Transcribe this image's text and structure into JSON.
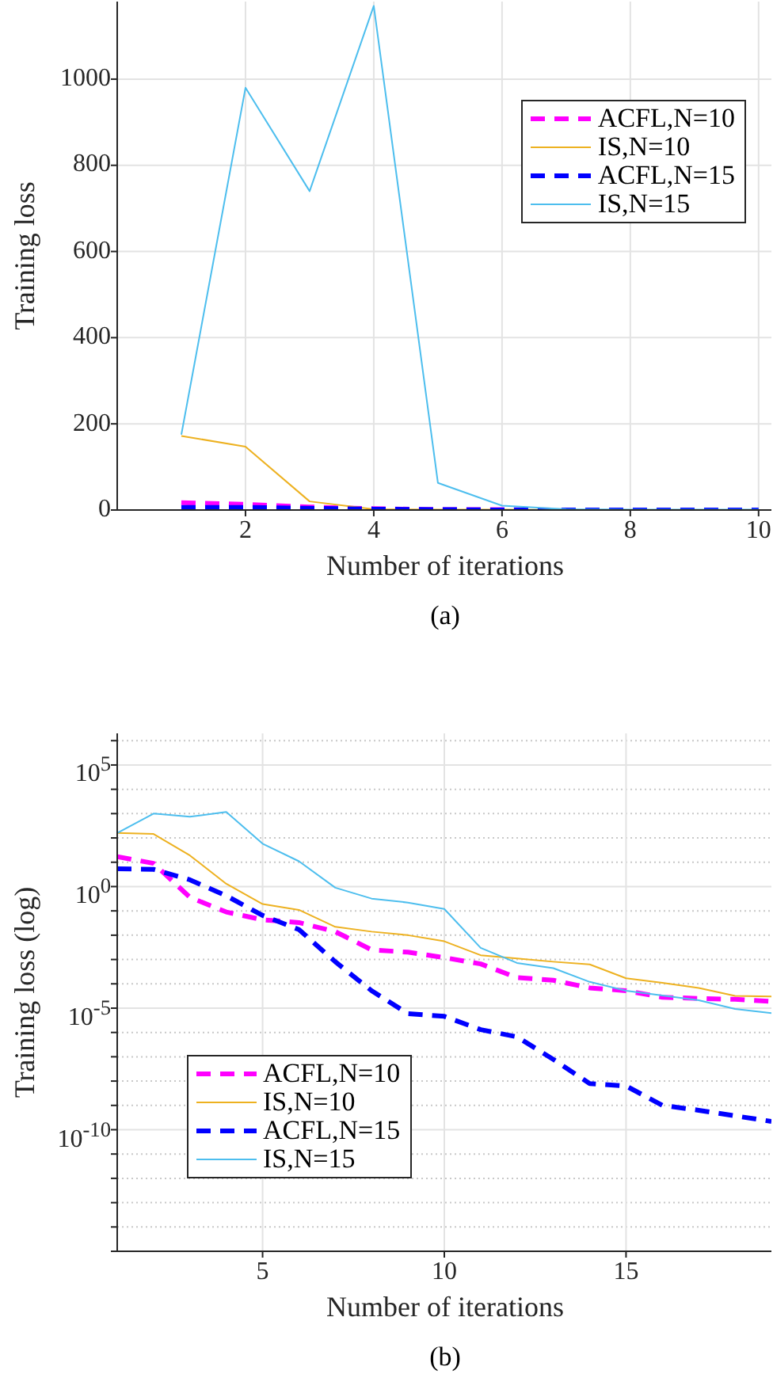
{
  "chart_data": [
    {
      "type": "line",
      "xlabel": "Number of iterations",
      "ylabel": "Training loss",
      "annotations": [
        "(a)"
      ],
      "x": [
        1,
        2,
        3,
        4,
        5,
        6,
        7,
        8,
        9,
        10
      ],
      "xlim": [
        0,
        10.2
      ],
      "xticks": [
        2,
        4,
        6,
        8,
        10
      ],
      "ylim": [
        0,
        1180
      ],
      "yticks": [
        0,
        200,
        400,
        600,
        800,
        1000
      ],
      "grid": true,
      "legend": "top right",
      "marker": "none",
      "series": [
        {
          "name": "ACFL,N=10",
          "color": "#ff00ff",
          "line_style": "dashed",
          "values": [
            17,
            13,
            7,
            3,
            1,
            1,
            0,
            null,
            null,
            null
          ]
        },
        {
          "name": "IS,N=10",
          "color": "#edb120",
          "line_style": "solid",
          "values": [
            172,
            147,
            20,
            2,
            1,
            1,
            0,
            null,
            null,
            null
          ]
        },
        {
          "name": "ACFL,N=15",
          "color": "#0000ff",
          "line_style": "dashed",
          "values": [
            6,
            6,
            4,
            2,
            1,
            0,
            0,
            0,
            0,
            0
          ]
        },
        {
          "name": "IS,N=15",
          "color": "#4dbeee",
          "line_style": "solid",
          "values": [
            175,
            980,
            740,
            1170,
            63,
            10,
            2,
            1,
            1,
            1
          ]
        }
      ]
    },
    {
      "type": "line",
      "xlabel": "Number of iterations",
      "ylabel": "Training loss (log)",
      "annotations": [
        "(b)"
      ],
      "x": [
        1,
        2,
        3,
        4,
        5,
        6,
        7,
        8,
        9,
        10,
        11,
        12,
        13,
        14,
        15,
        16,
        17,
        18,
        19
      ],
      "xlim": [
        1,
        19
      ],
      "xticks": [
        5,
        10,
        15
      ],
      "log": "y",
      "ylim": [
        1e-15,
        2000000.0
      ],
      "yticks": [
        {
          "value": 1e-15,
          "label": null
        },
        {
          "value": 1e-14,
          "label": null
        },
        {
          "value": 1e-13,
          "label": null
        },
        {
          "value": 1e-12,
          "label": null
        },
        {
          "value": 1e-11,
          "label": null
        },
        {
          "value": 1e-10,
          "label": "10$^{-10}$"
        },
        {
          "value": 1e-09,
          "label": null
        },
        {
          "value": 1e-08,
          "label": null
        },
        {
          "value": 1e-07,
          "label": null
        },
        {
          "value": 1e-06,
          "label": null
        },
        {
          "value": 1e-05,
          "label": "10$^{-5}$"
        },
        {
          "value": 0.0001,
          "label": null
        },
        {
          "value": 0.001,
          "label": null
        },
        {
          "value": 0.01,
          "label": null
        },
        {
          "value": 0.1,
          "label": null
        },
        {
          "value": 1,
          "label": "10$^{0}$"
        },
        {
          "value": 10,
          "label": null
        },
        {
          "value": 100,
          "label": null
        },
        {
          "value": 1000,
          "label": null
        },
        {
          "value": 10000.0,
          "label": null
        },
        {
          "value": 100000.0,
          "label": "10$^{5}$"
        },
        {
          "value": 1000000.0,
          "label": null
        }
      ],
      "grid": true,
      "legend": "bottom left",
      "marker": "none",
      "series": [
        {
          "name": "ACFL,N=10",
          "color": "#ff00ff",
          "line_style": "dashed",
          "values": [
            17,
            9,
            0.36,
            0.09,
            0.043,
            0.033,
            0.014,
            0.0025,
            0.002,
            0.0012,
            0.00066,
            0.00018,
            0.00014,
            6.8e-05,
            5.2e-05,
            2.8e-05,
            2.5e-05,
            2.3e-05,
            1.9e-05
          ]
        },
        {
          "name": "IS,N=10",
          "color": "#edb120",
          "line_style": "solid",
          "values": [
            160,
            145,
            19,
            1.3,
            0.19,
            0.11,
            0.022,
            0.014,
            0.01,
            0.0056,
            0.0015,
            0.0011,
            0.00081,
            0.00063,
            0.00017,
            0.00011,
            6.8e-05,
            3.2e-05,
            3e-05
          ]
        },
        {
          "name": "ACFL,N=15",
          "color": "#0000ff",
          "line_style": "dashed",
          "values": [
            5.4,
            5.1,
            1.9,
            0.42,
            0.065,
            0.017,
            0.00081,
            5.2e-05,
            5.9e-06,
            4.6e-06,
            1.3e-06,
            6.6e-07,
            7.8e-08,
            7.9e-09,
            6.3e-09,
            1e-09,
            6.3e-10,
            3.7e-10,
            2.2e-10
          ]
        },
        {
          "name": "IS,N=15",
          "color": "#4dbeee",
          "line_style": "solid",
          "values": [
            160,
            1000,
            740,
            1170,
            58,
            11,
            0.9,
            0.32,
            0.22,
            0.12,
            0.003,
            0.00072,
            0.00044,
            0.00012,
            5.2e-05,
            3.3e-05,
            2.1e-05,
            9.3e-06,
            6.2e-06
          ]
        }
      ]
    }
  ]
}
